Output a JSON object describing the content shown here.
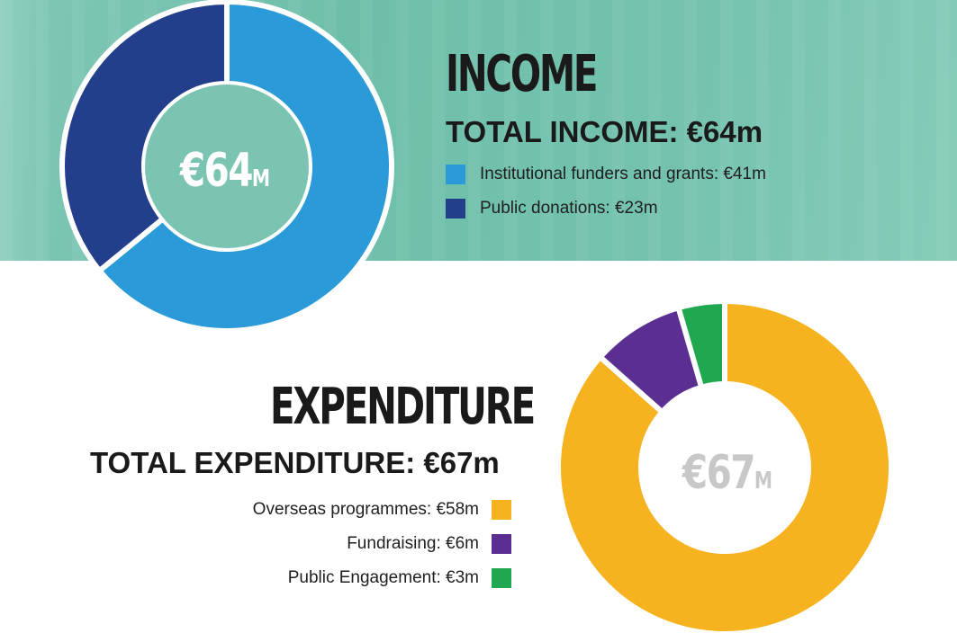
{
  "chart_data": [
    {
      "type": "pie",
      "title": "INCOME",
      "subtitle": "TOTAL INCOME: €64m",
      "center_label": "€64",
      "center_unit": "M",
      "categories": [
        "Institutional funders and grants: €41m",
        "Public donations: €23m"
      ],
      "values": [
        41,
        23
      ],
      "colors": [
        "#2a9ad8",
        "#233f8c"
      ]
    },
    {
      "type": "pie",
      "title": "EXPENDITURE",
      "subtitle": "TOTAL EXPENDITURE: €67m",
      "center_label": "€67",
      "center_unit": "M",
      "categories": [
        "Overseas programmes: €58m",
        "Fundraising: €6m",
        "Public Engagement: €3m"
      ],
      "values": [
        58,
        6,
        3
      ],
      "colors": [
        "#f6b21f",
        "#5a2f91",
        "#1fa84f"
      ]
    }
  ]
}
